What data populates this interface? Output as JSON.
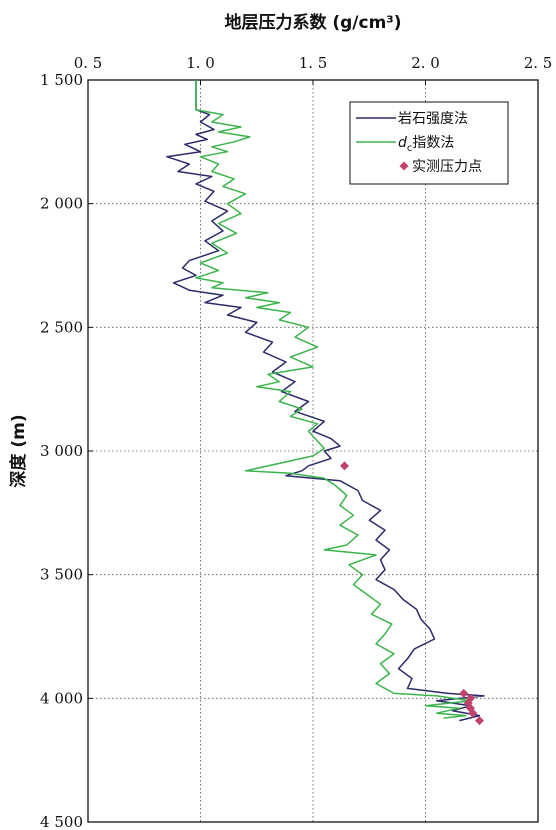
{
  "chart_data": {
    "type": "line",
    "xlabel": "地层压力系数 (g/cm³)",
    "ylabel": "深度 (m)",
    "xlim": [
      0.5,
      2.5
    ],
    "ylim": [
      1500,
      4500
    ],
    "y_inverted": true,
    "x_axis_position": "top",
    "grid": true,
    "legend_position": "top-right",
    "x_tick_labels": [
      "0. 5",
      "1. 0",
      "1. 5",
      "2. 0",
      "2. 5"
    ],
    "x_ticks": [
      0.5,
      1.0,
      1.5,
      2.0,
      2.5
    ],
    "y_tick_labels": [
      "1 500",
      "2 000",
      "2 500",
      "3 000",
      "3 500",
      "4 000",
      "4 500"
    ],
    "y_ticks": [
      1500,
      2000,
      2500,
      3000,
      3500,
      4000,
      4500
    ],
    "series": [
      {
        "name": "岩石强度法",
        "kind": "line",
        "color": "#2b2b6b",
        "points": [
          [
            0.98,
            1500
          ],
          [
            0.98,
            1620
          ],
          [
            1.04,
            1640
          ],
          [
            1.0,
            1670
          ],
          [
            1.06,
            1700
          ],
          [
            0.98,
            1720
          ],
          [
            1.03,
            1740
          ],
          [
            0.93,
            1760
          ],
          [
            1.0,
            1790
          ],
          [
            0.85,
            1810
          ],
          [
            0.95,
            1840
          ],
          [
            0.9,
            1870
          ],
          [
            1.05,
            1890
          ],
          [
            0.98,
            1920
          ],
          [
            1.06,
            1950
          ],
          [
            1.02,
            1990
          ],
          [
            1.12,
            2030
          ],
          [
            1.05,
            2070
          ],
          [
            1.1,
            2110
          ],
          [
            1.02,
            2150
          ],
          [
            1.08,
            2190
          ],
          [
            0.95,
            2230
          ],
          [
            0.92,
            2260
          ],
          [
            0.98,
            2290
          ],
          [
            0.88,
            2320
          ],
          [
            0.95,
            2350
          ],
          [
            1.1,
            2370
          ],
          [
            1.02,
            2400
          ],
          [
            1.18,
            2420
          ],
          [
            1.12,
            2450
          ],
          [
            1.25,
            2480
          ],
          [
            1.2,
            2520
          ],
          [
            1.32,
            2560
          ],
          [
            1.28,
            2600
          ],
          [
            1.38,
            2640
          ],
          [
            1.32,
            2680
          ],
          [
            1.42,
            2720
          ],
          [
            1.36,
            2760
          ],
          [
            1.48,
            2800
          ],
          [
            1.42,
            2840
          ],
          [
            1.55,
            2880
          ],
          [
            1.5,
            2920
          ],
          [
            1.58,
            2950
          ],
          [
            1.62,
            2980
          ],
          [
            1.55,
            3000
          ],
          [
            1.58,
            3030
          ],
          [
            1.48,
            3060
          ],
          [
            1.45,
            3080
          ],
          [
            1.38,
            3100
          ],
          [
            1.5,
            3110
          ],
          [
            1.62,
            3120
          ],
          [
            1.7,
            3160
          ],
          [
            1.72,
            3200
          ],
          [
            1.8,
            3240
          ],
          [
            1.75,
            3280
          ],
          [
            1.82,
            3320
          ],
          [
            1.78,
            3360
          ],
          [
            1.84,
            3400
          ],
          [
            1.8,
            3440
          ],
          [
            1.82,
            3480
          ],
          [
            1.78,
            3520
          ],
          [
            1.86,
            3560
          ],
          [
            1.9,
            3600
          ],
          [
            1.96,
            3640
          ],
          [
            1.98,
            3680
          ],
          [
            2.02,
            3720
          ],
          [
            2.04,
            3760
          ],
          [
            1.95,
            3800
          ],
          [
            1.92,
            3840
          ],
          [
            1.88,
            3880
          ],
          [
            1.94,
            3920
          ],
          [
            1.92,
            3960
          ],
          [
            2.1,
            3980
          ],
          [
            2.26,
            3990
          ],
          [
            2.05,
            4010
          ],
          [
            2.2,
            4030
          ],
          [
            2.12,
            4050
          ],
          [
            2.24,
            4070
          ],
          [
            2.15,
            4090
          ]
        ]
      },
      {
        "name": "d_c指数法",
        "legend_main": "d",
        "legend_sub": "c",
        "legend_rest": "指数法",
        "kind": "line",
        "color": "#3cb44b",
        "points": [
          [
            0.98,
            1500
          ],
          [
            0.98,
            1620
          ],
          [
            1.1,
            1640
          ],
          [
            1.05,
            1670
          ],
          [
            1.18,
            1690
          ],
          [
            1.08,
            1710
          ],
          [
            1.22,
            1730
          ],
          [
            1.15,
            1750
          ],
          [
            1.05,
            1770
          ],
          [
            1.12,
            1790
          ],
          [
            1.0,
            1810
          ],
          [
            1.08,
            1840
          ],
          [
            1.05,
            1870
          ],
          [
            1.15,
            1900
          ],
          [
            1.1,
            1930
          ],
          [
            1.2,
            1960
          ],
          [
            1.12,
            2000
          ],
          [
            1.18,
            2040
          ],
          [
            1.08,
            2080
          ],
          [
            1.16,
            2120
          ],
          [
            1.05,
            2160
          ],
          [
            1.12,
            2200
          ],
          [
            1.0,
            2240
          ],
          [
            1.08,
            2270
          ],
          [
            0.98,
            2300
          ],
          [
            1.1,
            2320
          ],
          [
            1.05,
            2340
          ],
          [
            1.3,
            2360
          ],
          [
            1.2,
            2380
          ],
          [
            1.35,
            2400
          ],
          [
            1.25,
            2420
          ],
          [
            1.4,
            2440
          ],
          [
            1.35,
            2470
          ],
          [
            1.48,
            2500
          ],
          [
            1.42,
            2540
          ],
          [
            1.52,
            2580
          ],
          [
            1.4,
            2620
          ],
          [
            1.5,
            2660
          ],
          [
            1.3,
            2690
          ],
          [
            1.35,
            2720
          ],
          [
            1.25,
            2740
          ],
          [
            1.4,
            2760
          ],
          [
            1.35,
            2800
          ],
          [
            1.45,
            2830
          ],
          [
            1.4,
            2860
          ],
          [
            1.52,
            2890
          ],
          [
            1.48,
            2920
          ],
          [
            1.52,
            2960
          ],
          [
            1.55,
            2990
          ],
          [
            1.5,
            3020
          ],
          [
            1.35,
            3050
          ],
          [
            1.2,
            3080
          ],
          [
            1.4,
            3090
          ],
          [
            1.55,
            3110
          ],
          [
            1.6,
            3140
          ],
          [
            1.65,
            3180
          ],
          [
            1.62,
            3220
          ],
          [
            1.68,
            3260
          ],
          [
            1.62,
            3300
          ],
          [
            1.7,
            3340
          ],
          [
            1.65,
            3380
          ],
          [
            1.55,
            3400
          ],
          [
            1.78,
            3420
          ],
          [
            1.66,
            3460
          ],
          [
            1.72,
            3500
          ],
          [
            1.68,
            3540
          ],
          [
            1.74,
            3580
          ],
          [
            1.8,
            3620
          ],
          [
            1.76,
            3660
          ],
          [
            1.85,
            3700
          ],
          [
            1.82,
            3740
          ],
          [
            1.78,
            3780
          ],
          [
            1.86,
            3820
          ],
          [
            1.8,
            3860
          ],
          [
            1.84,
            3900
          ],
          [
            1.78,
            3940
          ],
          [
            1.86,
            3980
          ],
          [
            2.05,
            3990
          ],
          [
            2.2,
            4010
          ],
          [
            2.0,
            4030
          ],
          [
            2.15,
            4040
          ],
          [
            2.05,
            4060
          ],
          [
            2.18,
            4070
          ],
          [
            2.08,
            4080
          ]
        ]
      },
      {
        "name": "实测压力点",
        "kind": "scatter",
        "color": "#c0436e",
        "points": [
          [
            1.64,
            3060
          ],
          [
            2.17,
            3980
          ],
          [
            2.2,
            4000
          ],
          [
            2.19,
            4020
          ],
          [
            2.2,
            4040
          ],
          [
            2.21,
            4060
          ],
          [
            2.24,
            4090
          ]
        ]
      }
    ]
  }
}
